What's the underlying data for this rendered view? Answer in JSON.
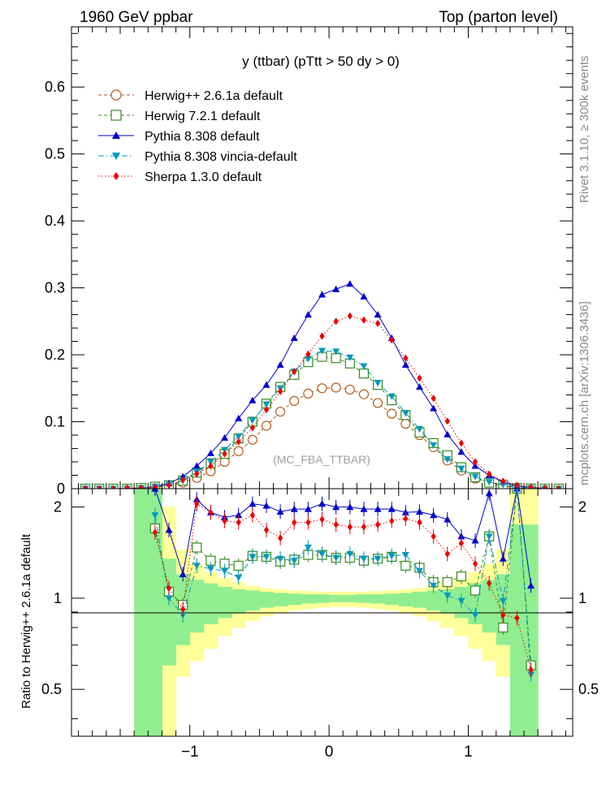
{
  "header": {
    "left": "1960 GeV ppbar",
    "right": "Top (parton level)"
  },
  "side_labels": {
    "rivet": "Rivet 3.1.10, ≥ 300k events",
    "mcplots": "mcplots.cern.ch [arXiv:1306.3436]"
  },
  "chart_data": [
    {
      "type": "line",
      "title": "y (ttbar) (pTtt > 50 dy > 0)",
      "watermark": "(MC_FBA_TTBAR)",
      "xlabel": "",
      "ylabel": "",
      "xlim": [
        -1.85,
        1.75
      ],
      "ylim": [
        0,
        0.69
      ],
      "yticks": [
        0,
        0.1,
        0.2,
        0.3,
        0.4,
        0.5,
        0.6
      ],
      "ytick_labels": [
        "0",
        "0.1",
        "0.2",
        "0.3",
        "0.4",
        "0.5",
        "0.6"
      ],
      "x": [
        -1.75,
        -1.65,
        -1.55,
        -1.45,
        -1.35,
        -1.25,
        -1.15,
        -1.05,
        -0.95,
        -0.85,
        -0.75,
        -0.65,
        -0.55,
        -0.45,
        -0.35,
        -0.25,
        -0.15,
        -0.05,
        0.05,
        0.15,
        0.25,
        0.35,
        0.45,
        0.55,
        0.65,
        0.75,
        0.85,
        0.95,
        1.05,
        1.15,
        1.25,
        1.35,
        1.45,
        1.55,
        1.65
      ],
      "legend_position": "top-left",
      "series": [
        {
          "name": "Herwig++ 2.6.1a default",
          "color": "#b35a1f",
          "marker": "open-circle",
          "line": "dashed",
          "values": [
            0,
            0,
            0,
            0,
            0.0005,
            0.002,
            0.004,
            0.009,
            0.016,
            0.026,
            0.04,
            0.056,
            0.073,
            0.094,
            0.115,
            0.131,
            0.142,
            0.15,
            0.151,
            0.148,
            0.141,
            0.128,
            0.112,
            0.097,
            0.08,
            0.062,
            0.042,
            0.027,
            0.015,
            0.009,
            0.004,
            0.0015,
            0.0005,
            0,
            0
          ]
        },
        {
          "name": "Herwig 7.2.1 default",
          "color": "#3a8a1f",
          "marker": "open-square",
          "line": "dashed",
          "values": [
            0,
            0,
            0,
            0,
            0.001,
            0.003,
            0.005,
            0.012,
            0.024,
            0.038,
            0.052,
            0.075,
            0.1,
            0.127,
            0.152,
            0.17,
            0.189,
            0.197,
            0.195,
            0.187,
            0.172,
            0.155,
            0.132,
            0.11,
            0.084,
            0.068,
            0.05,
            0.032,
            0.017,
            0.009,
            0.006,
            0.001,
            0.0003,
            0,
            0
          ]
        },
        {
          "name": "Pythia 8.308 default",
          "color": "#0000cc",
          "marker": "filled-triangle-up",
          "line": "solid",
          "values": [
            0,
            0,
            0,
            0,
            0.001,
            0.003,
            0.008,
            0.018,
            0.034,
            0.053,
            0.076,
            0.105,
            0.132,
            0.155,
            0.185,
            0.225,
            0.26,
            0.29,
            0.298,
            0.306,
            0.287,
            0.26,
            0.225,
            0.185,
            0.152,
            0.12,
            0.081,
            0.055,
            0.034,
            0.02,
            0.01,
            0.004,
            0.002,
            0,
            0
          ]
        },
        {
          "name": "Pythia 8.308 vincia-default",
          "color": "#0099bb",
          "marker": "filled-triangle-down",
          "line": "dashdot",
          "values": [
            0,
            0,
            0,
            0,
            0.001,
            0.003,
            0.006,
            0.012,
            0.025,
            0.04,
            0.058,
            0.078,
            0.102,
            0.126,
            0.15,
            0.175,
            0.194,
            0.206,
            0.205,
            0.196,
            0.183,
            0.158,
            0.138,
            0.113,
            0.089,
            0.065,
            0.044,
            0.03,
            0.018,
            0.01,
            0.006,
            0.003,
            0.001,
            0,
            0
          ]
        },
        {
          "name": "Sherpa 1.3.0 default",
          "color": "#ee0000",
          "marker": "filled-diamond",
          "line": "dotted",
          "values": [
            0,
            0,
            0,
            0.001,
            0.001,
            0.002,
            0.005,
            0.013,
            0.022,
            0.034,
            0.052,
            0.07,
            0.091,
            0.118,
            0.145,
            0.175,
            0.201,
            0.228,
            0.25,
            0.258,
            0.252,
            0.247,
            0.222,
            0.195,
            0.165,
            0.135,
            0.101,
            0.068,
            0.04,
            0.022,
            0.011,
            0.005,
            0.002,
            0.001,
            0
          ]
        }
      ]
    },
    {
      "type": "line",
      "title": "",
      "ylabel": "Ratio to Herwig++ 2.6.1a default",
      "xlabel": "",
      "xlim": [
        -1.85,
        1.75
      ],
      "ylim": [
        0.35,
        2.3
      ],
      "y_scale": "log",
      "xticks": [
        -1,
        0,
        1
      ],
      "xtick_labels": [
        "−1",
        "0",
        "1"
      ],
      "yticks": [
        0.5,
        1,
        2
      ],
      "ytick_labels": [
        "0.5",
        "1",
        "2"
      ],
      "reference_line": 1,
      "bands": {
        "edges": [
          -1.4,
          -1.3,
          -1.2,
          -1.1,
          -1.0,
          -0.9,
          -0.8,
          -0.7,
          -0.6,
          -0.5,
          -0.4,
          -0.3,
          -0.2,
          -0.1,
          0,
          0.1,
          0.2,
          0.3,
          0.4,
          0.5,
          0.6,
          0.7,
          0.8,
          0.9,
          1.0,
          1.1,
          1.2,
          1.3,
          1.4,
          1.5
        ],
        "green": {
          "color": "#90ee90",
          "lo": [
            0.35,
            0.35,
            0.6,
            0.7,
            0.77,
            0.82,
            0.86,
            0.89,
            0.91,
            0.93,
            0.94,
            0.95,
            0.96,
            0.965,
            0.97,
            0.97,
            0.965,
            0.96,
            0.95,
            0.94,
            0.93,
            0.91,
            0.89,
            0.86,
            0.82,
            0.77,
            0.7,
            0.35,
            0.35
          ],
          "hi": [
            2.3,
            2.3,
            1.35,
            1.2,
            1.15,
            1.12,
            1.09,
            1.07,
            1.06,
            1.05,
            1.04,
            1.035,
            1.03,
            1.03,
            1.025,
            1.025,
            1.03,
            1.03,
            1.035,
            1.04,
            1.05,
            1.06,
            1.07,
            1.09,
            1.12,
            1.15,
            1.2,
            1.75,
            1.75
          ]
        },
        "yellow": {
          "color": "#ffff99",
          "lo": [
            0.35,
            0.35,
            0.35,
            0.55,
            0.62,
            0.68,
            0.75,
            0.8,
            0.84,
            0.87,
            0.89,
            0.91,
            0.92,
            0.93,
            0.935,
            0.935,
            0.93,
            0.92,
            0.91,
            0.89,
            0.87,
            0.84,
            0.8,
            0.75,
            0.68,
            0.62,
            0.55,
            0.35,
            0.35
          ],
          "hi": [
            2.3,
            2.3,
            2.0,
            1.45,
            1.3,
            1.22,
            1.17,
            1.13,
            1.1,
            1.08,
            1.07,
            1.06,
            1.055,
            1.05,
            1.05,
            1.05,
            1.05,
            1.055,
            1.06,
            1.07,
            1.08,
            1.1,
            1.13,
            1.17,
            1.22,
            1.3,
            1.45,
            2.3,
            2.3
          ]
        }
      },
      "x": [
        -1.25,
        -1.15,
        -1.05,
        -0.95,
        -0.85,
        -0.75,
        -0.65,
        -0.55,
        -0.45,
        -0.35,
        -0.25,
        -0.15,
        -0.05,
        0.05,
        0.15,
        0.25,
        0.35,
        0.45,
        0.55,
        0.65,
        0.75,
        0.85,
        0.95,
        1.05,
        1.15,
        1.25,
        1.35,
        1.45
      ],
      "series": [
        {
          "name": "Herwig 7.2.1 default",
          "color": "#3a8a1f",
          "marker": "open-square",
          "line": "dashed",
          "values": [
            1.7,
            1.05,
            0.95,
            1.47,
            1.33,
            1.3,
            1.28,
            1.38,
            1.37,
            1.32,
            1.34,
            1.39,
            1.39,
            1.36,
            1.36,
            1.33,
            1.35,
            1.37,
            1.28,
            1.26,
            1.13,
            1.13,
            1.18,
            1.06,
            1.6,
            0.8,
            2.3,
            0.6
          ]
        },
        {
          "name": "Pythia 8.308 default",
          "color": "#0000cc",
          "marker": "filled-triangle-up",
          "line": "solid",
          "values": [
            2.3,
            1.68,
            1.2,
            2.12,
            1.92,
            1.85,
            1.88,
            2.05,
            2.02,
            1.93,
            1.97,
            1.97,
            2.05,
            2.0,
            2.0,
            1.97,
            1.97,
            1.97,
            1.92,
            1.93,
            1.88,
            1.82,
            1.6,
            1.55,
            2.22,
            1.35,
            2.3,
            1.1
          ]
        },
        {
          "name": "Pythia 8.308 vincia-default",
          "color": "#0099bb",
          "marker": "filled-triangle-down",
          "line": "dashdot",
          "values": [
            1.88,
            1.0,
            0.88,
            1.28,
            1.25,
            1.23,
            1.17,
            1.37,
            1.37,
            1.35,
            1.33,
            1.47,
            1.4,
            1.36,
            1.4,
            1.35,
            1.35,
            1.38,
            1.39,
            1.23,
            1.1,
            1.02,
            0.98,
            0.88,
            1.6,
            0.98,
            2.3,
            0.56
          ]
        },
        {
          "name": "Sherpa 1.3.0 default",
          "color": "#ee0000",
          "marker": "filled-diamond",
          "line": "dotted",
          "values": [
            1.65,
            1.08,
            0.92,
            2.05,
            1.92,
            1.8,
            1.78,
            1.88,
            1.68,
            1.58,
            1.78,
            1.78,
            1.82,
            1.75,
            1.72,
            1.72,
            1.75,
            1.8,
            1.83,
            1.78,
            1.6,
            1.4,
            1.52,
            1.3,
            1.12,
            0.88,
            0.86,
            0.58
          ]
        }
      ]
    }
  ]
}
